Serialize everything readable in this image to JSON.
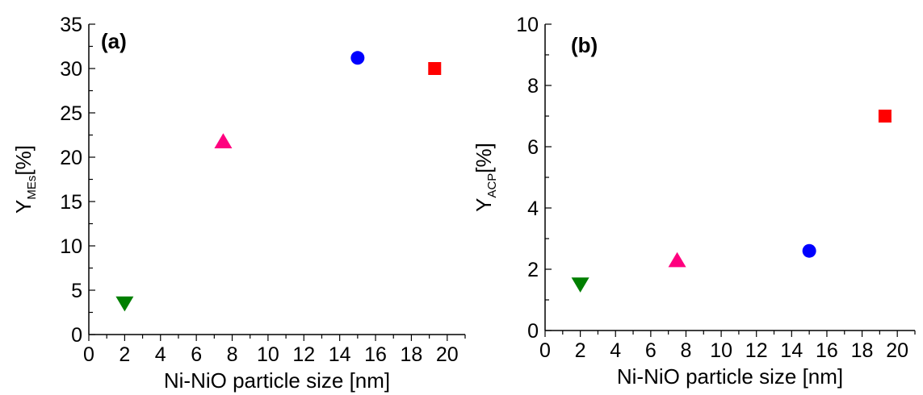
{
  "chart_data": [
    {
      "type": "scatter",
      "panel_label": "(a)",
      "xlabel": "Ni-NiO particle size [nm]",
      "ylabel": {
        "main": "Y",
        "sub": "MEs",
        "unit": "[%]"
      },
      "xlim": [
        0,
        21
      ],
      "ylim": [
        0,
        35
      ],
      "xticks": [
        0,
        2,
        4,
        6,
        8,
        10,
        12,
        14,
        16,
        18,
        20
      ],
      "yticks": [
        0,
        5,
        10,
        15,
        20,
        25,
        30,
        35
      ],
      "grid": false,
      "points": [
        {
          "x": 2.0,
          "y": 3.5,
          "marker": "triangle-down",
          "color": "#007f00"
        },
        {
          "x": 7.5,
          "y": 21.8,
          "marker": "triangle-up",
          "color": "#ff007f"
        },
        {
          "x": 15.0,
          "y": 31.2,
          "marker": "circle",
          "color": "#0000ff"
        },
        {
          "x": 19.3,
          "y": 30.0,
          "marker": "square",
          "color": "#ff0000"
        }
      ]
    },
    {
      "type": "scatter",
      "panel_label": "(b)",
      "xlabel": "Ni-NiO particle size [nm]",
      "ylabel": {
        "main": "Y",
        "sub": "ACP",
        "unit": "[%]"
      },
      "xlim": [
        0,
        21
      ],
      "ylim": [
        0,
        10
      ],
      "xticks": [
        0,
        2,
        4,
        6,
        8,
        10,
        12,
        14,
        16,
        18,
        20
      ],
      "yticks": [
        0,
        2,
        4,
        6,
        8,
        10
      ],
      "grid": false,
      "points": [
        {
          "x": 2.0,
          "y": 1.5,
          "marker": "triangle-down",
          "color": "#007f00"
        },
        {
          "x": 7.5,
          "y": 2.3,
          "marker": "triangle-up",
          "color": "#ff007f"
        },
        {
          "x": 15.0,
          "y": 2.6,
          "marker": "circle",
          "color": "#0000ff"
        },
        {
          "x": 19.3,
          "y": 7.0,
          "marker": "square",
          "color": "#ff0000"
        }
      ]
    }
  ]
}
